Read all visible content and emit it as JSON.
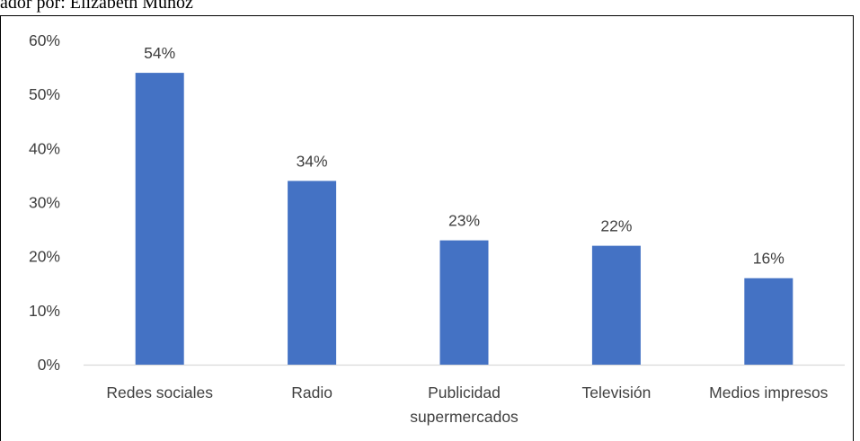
{
  "caption": "ador por: Elizabeth Muñoz",
  "chart_data": {
    "type": "bar",
    "categories": [
      [
        "Redes sociales"
      ],
      [
        "Radio"
      ],
      [
        "Publicidad",
        "supermercados"
      ],
      [
        "Televisión"
      ],
      [
        "Medios impresos"
      ]
    ],
    "values": [
      54,
      34,
      23,
      22,
      16
    ],
    "data_labels": [
      "54%",
      "34%",
      "23%",
      "22%",
      "16%"
    ],
    "y_ticks": [
      "0%",
      "10%",
      "20%",
      "30%",
      "40%",
      "50%",
      "60%"
    ],
    "ylim": [
      0,
      60
    ],
    "bar_color": "#4472C4",
    "axis_color": "#D9D9D9",
    "grid": false,
    "legend": false
  }
}
